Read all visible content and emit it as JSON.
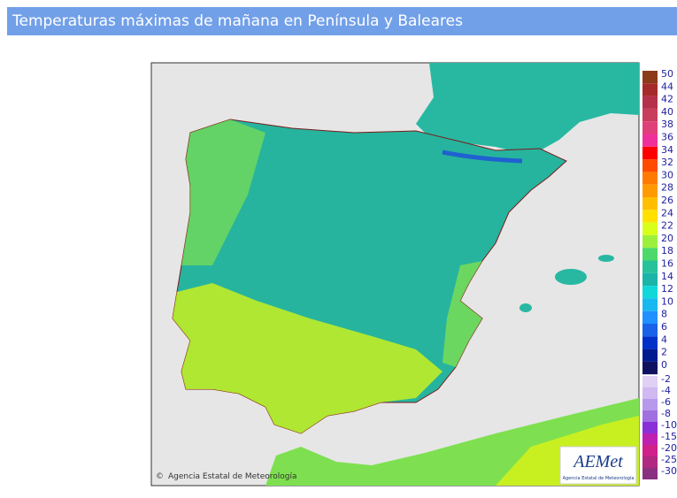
{
  "header": {
    "title": "Temperaturas máximas de mañana en Península y Baleares"
  },
  "map": {
    "credit": "Agencia Estatal de Meteorología",
    "logo": {
      "name": "AEMet",
      "subtitle": "Agencia Estatal de Meteorología"
    }
  },
  "legend": {
    "positive": [
      {
        "label": "50",
        "color": "#8b3a1a"
      },
      {
        "label": "44",
        "color": "#a52a2a"
      },
      {
        "label": "42",
        "color": "#b5304a"
      },
      {
        "label": "40",
        "color": "#c83c5c"
      },
      {
        "label": "38",
        "color": "#e0407a"
      },
      {
        "label": "36",
        "color": "#f0309a"
      },
      {
        "label": "34",
        "color": "#ff0000"
      },
      {
        "label": "32",
        "color": "#ff4a00"
      },
      {
        "label": "30",
        "color": "#ff7a00"
      },
      {
        "label": "28",
        "color": "#ff9a00"
      },
      {
        "label": "26",
        "color": "#ffbf00"
      },
      {
        "label": "24",
        "color": "#ffe000"
      },
      {
        "label": "22",
        "color": "#d8ff1a"
      },
      {
        "label": "20",
        "color": "#9cf03c"
      },
      {
        "label": "18",
        "color": "#4cd96a"
      },
      {
        "label": "16",
        "color": "#27c29a"
      },
      {
        "label": "14",
        "color": "#1ab4a8"
      },
      {
        "label": "12",
        "color": "#10d8d8"
      },
      {
        "label": "10",
        "color": "#1ab8f0"
      },
      {
        "label": "8",
        "color": "#1e90ff"
      },
      {
        "label": "6",
        "color": "#1a60e8"
      },
      {
        "label": "4",
        "color": "#0030c8"
      },
      {
        "label": "2",
        "color": "#001a90"
      },
      {
        "label": "0",
        "color": "#101060"
      }
    ],
    "negative": [
      {
        "label": "-2",
        "color": "#e0d0f4"
      },
      {
        "label": "-4",
        "color": "#d0b8f0"
      },
      {
        "label": "-6",
        "color": "#b898ec"
      },
      {
        "label": "-8",
        "color": "#a070e0"
      },
      {
        "label": "-10",
        "color": "#8a30d8"
      },
      {
        "label": "-15",
        "color": "#c020b0"
      },
      {
        "label": "-20",
        "color": "#d0208a"
      },
      {
        "label": "-25",
        "color": "#b02880"
      },
      {
        "label": "-30",
        "color": "#8a3080"
      }
    ]
  }
}
